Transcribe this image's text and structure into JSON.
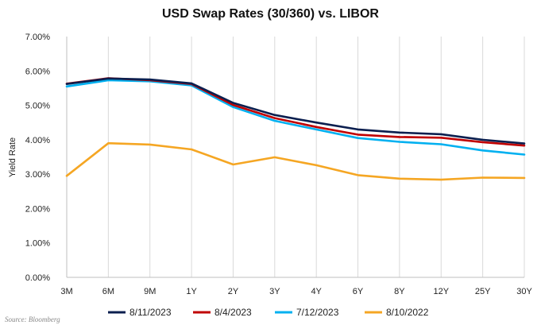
{
  "source": "Source: Bloomberg",
  "chart_data": {
    "type": "line",
    "title": "USD Swap Rates (30/360) vs. LIBOR",
    "ylabel": "Yield Rate",
    "xlabel": "",
    "categories": [
      "3M",
      "6M",
      "9M",
      "1Y",
      "2Y",
      "3Y",
      "4Y",
      "6Y",
      "8Y",
      "12Y",
      "25Y",
      "30Y"
    ],
    "ylim": [
      0,
      7
    ],
    "yticks": [
      "0.00%",
      "1.00%",
      "2.00%",
      "3.00%",
      "4.00%",
      "5.00%",
      "6.00%",
      "7.00%"
    ],
    "grid": "vertical",
    "legend": "bottom",
    "series": [
      {
        "name": "8/11/2023",
        "color": "#0b1f4f",
        "values": [
          5.62,
          5.78,
          5.75,
          5.64,
          5.07,
          4.72,
          4.5,
          4.3,
          4.21,
          4.16,
          4.0,
          3.89
        ]
      },
      {
        "name": "8/4/2023",
        "color": "#c00000",
        "values": [
          5.63,
          5.79,
          5.73,
          5.62,
          5.01,
          4.63,
          4.37,
          4.15,
          4.08,
          4.06,
          3.93,
          3.83
        ]
      },
      {
        "name": "7/12/2023",
        "color": "#00b0f0",
        "values": [
          5.55,
          5.73,
          5.7,
          5.58,
          4.95,
          4.55,
          4.3,
          4.05,
          3.94,
          3.87,
          3.69,
          3.57
        ]
      },
      {
        "name": "8/10/2022",
        "color": "#f5a623",
        "values": [
          2.95,
          3.9,
          3.86,
          3.72,
          3.28,
          3.49,
          3.26,
          2.97,
          2.87,
          2.84,
          2.9,
          2.89
        ]
      }
    ]
  }
}
